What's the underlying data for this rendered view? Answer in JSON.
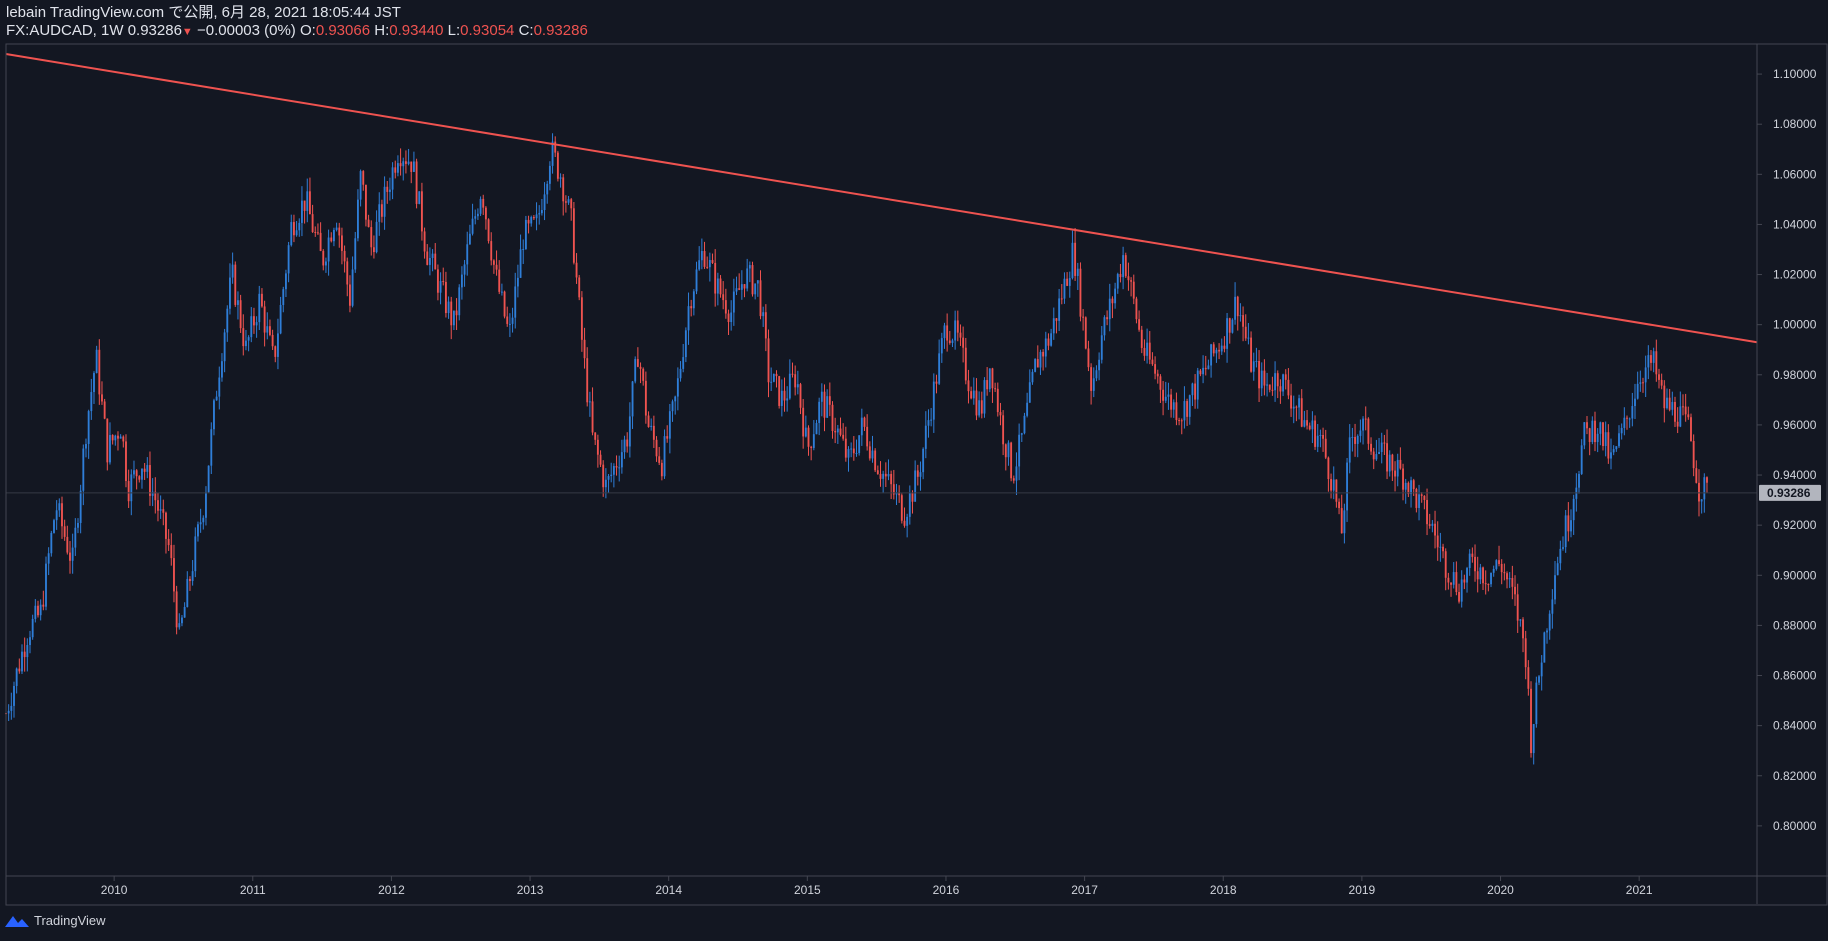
{
  "header": {
    "publish_line": "lebain TradingView.com で公開, 6月 28, 2021 18:05:44 JST",
    "symbol": "FX:AUDCAD, 1W",
    "last_price": "0.93286",
    "change_arrow": "▼",
    "change": "−0.00003 (0%)",
    "o_label": "O:",
    "o_value": "0.93066",
    "h_label": "H:",
    "h_value": "0.93440",
    "l_label": "L:",
    "l_value": "0.93054",
    "c_label": "C:",
    "c_value": "0.93286"
  },
  "footer": {
    "brand": "TradingView",
    "logo_icon": "tradingview-logo-icon"
  },
  "colors": {
    "background": "#131722",
    "up": "#2f7ed8",
    "down": "#ef5350",
    "trendline": "#ef5350",
    "axis": "#434651",
    "text": "#d1d4dc",
    "price_label_bg": "#b2b5be"
  },
  "chart_data": {
    "type": "candlestick",
    "symbol": "FX:AUDCAD",
    "interval": "1W",
    "y_ticks": [
      "0.80000",
      "0.82000",
      "0.84000",
      "0.86000",
      "0.88000",
      "0.90000",
      "0.92000",
      "0.94000",
      "0.96000",
      "0.98000",
      "1.00000",
      "1.02000",
      "1.04000",
      "1.06000",
      "1.08000",
      "1.10000"
    ],
    "ylim": [
      0.78,
      1.112
    ],
    "x_ticks": [
      "2010",
      "2011",
      "2012",
      "2013",
      "2014",
      "2015",
      "2016",
      "2017",
      "2018",
      "2019",
      "2020",
      "2021"
    ],
    "xlim": [
      2009.22,
      2021.85
    ],
    "last_price": 0.93286,
    "last_price_label": "0.93286",
    "trendline": [
      {
        "t": 2009.22,
        "p": 1.108
      },
      {
        "t": 2021.85,
        "p": 0.993
      }
    ],
    "price_path": [
      [
        2009.22,
        0.845
      ],
      [
        2009.38,
        0.878
      ],
      [
        2009.47,
        0.885
      ],
      [
        2009.58,
        0.928
      ],
      [
        2009.7,
        0.905
      ],
      [
        2009.8,
        0.96
      ],
      [
        2009.87,
        0.987
      ],
      [
        2009.95,
        0.95
      ],
      [
        2010.05,
        0.96
      ],
      [
        2010.1,
        0.935
      ],
      [
        2010.2,
        0.945
      ],
      [
        2010.3,
        0.93
      ],
      [
        2010.4,
        0.91
      ],
      [
        2010.47,
        0.875
      ],
      [
        2010.55,
        0.9
      ],
      [
        2010.65,
        0.93
      ],
      [
        2010.75,
        0.98
      ],
      [
        2010.85,
        1.02
      ],
      [
        2010.95,
        0.99
      ],
      [
        2011.05,
        1.01
      ],
      [
        2011.15,
        0.985
      ],
      [
        2011.28,
        1.04
      ],
      [
        2011.38,
        1.05
      ],
      [
        2011.5,
        1.025
      ],
      [
        2011.6,
        1.045
      ],
      [
        2011.7,
        1.01
      ],
      [
        2011.78,
        1.06
      ],
      [
        2011.85,
        1.03
      ],
      [
        2011.95,
        1.05
      ],
      [
        2012.05,
        1.07
      ],
      [
        2012.15,
        1.065
      ],
      [
        2012.25,
        1.03
      ],
      [
        2012.35,
        1.015
      ],
      [
        2012.45,
        1.0
      ],
      [
        2012.55,
        1.03
      ],
      [
        2012.65,
        1.055
      ],
      [
        2012.75,
        1.02
      ],
      [
        2012.85,
        0.995
      ],
      [
        2012.95,
        1.035
      ],
      [
        2013.05,
        1.04
      ],
      [
        2013.15,
        1.07
      ],
      [
        2013.22,
        1.06
      ],
      [
        2013.3,
        1.04
      ],
      [
        2013.38,
        0.99
      ],
      [
        2013.45,
        0.955
      ],
      [
        2013.55,
        0.935
      ],
      [
        2013.62,
        0.945
      ],
      [
        2013.7,
        0.955
      ],
      [
        2013.78,
        0.99
      ],
      [
        2013.85,
        0.96
      ],
      [
        2013.95,
        0.945
      ],
      [
        2014.05,
        0.97
      ],
      [
        2014.15,
        1.01
      ],
      [
        2014.25,
        1.03
      ],
      [
        2014.35,
        1.015
      ],
      [
        2014.45,
        1.005
      ],
      [
        2014.55,
        1.02
      ],
      [
        2014.65,
        1.015
      ],
      [
        2014.72,
        0.98
      ],
      [
        2014.82,
        0.97
      ],
      [
        2014.92,
        0.98
      ],
      [
        2015.0,
        0.95
      ],
      [
        2015.1,
        0.97
      ],
      [
        2015.2,
        0.96
      ],
      [
        2015.3,
        0.945
      ],
      [
        2015.4,
        0.96
      ],
      [
        2015.5,
        0.945
      ],
      [
        2015.6,
        0.935
      ],
      [
        2015.7,
        0.925
      ],
      [
        2015.8,
        0.94
      ],
      [
        2015.9,
        0.97
      ],
      [
        2016.0,
        1.0
      ],
      [
        2016.08,
        0.995
      ],
      [
        2016.15,
        0.98
      ],
      [
        2016.25,
        0.965
      ],
      [
        2016.32,
        0.985
      ],
      [
        2016.4,
        0.96
      ],
      [
        2016.48,
        0.94
      ],
      [
        2016.55,
        0.955
      ],
      [
        2016.65,
        0.985
      ],
      [
        2016.75,
        0.995
      ],
      [
        2016.85,
        1.015
      ],
      [
        2016.92,
        1.03
      ],
      [
        2016.98,
        1.005
      ],
      [
        2017.05,
        0.975
      ],
      [
        2017.12,
        0.995
      ],
      [
        2017.2,
        1.01
      ],
      [
        2017.28,
        1.028
      ],
      [
        2017.35,
        1.01
      ],
      [
        2017.42,
        0.99
      ],
      [
        2017.52,
        0.98
      ],
      [
        2017.6,
        0.97
      ],
      [
        2017.7,
        0.965
      ],
      [
        2017.8,
        0.975
      ],
      [
        2017.9,
        0.985
      ],
      [
        2018.0,
        0.995
      ],
      [
        2018.1,
        1.01
      ],
      [
        2018.2,
        0.985
      ],
      [
        2018.3,
        0.975
      ],
      [
        2018.4,
        0.98
      ],
      [
        2018.5,
        0.97
      ],
      [
        2018.6,
        0.96
      ],
      [
        2018.7,
        0.955
      ],
      [
        2018.8,
        0.935
      ],
      [
        2018.85,
        0.915
      ],
      [
        2018.92,
        0.955
      ],
      [
        2019.0,
        0.96
      ],
      [
        2019.1,
        0.95
      ],
      [
        2019.2,
        0.945
      ],
      [
        2019.3,
        0.94
      ],
      [
        2019.4,
        0.93
      ],
      [
        2019.5,
        0.92
      ],
      [
        2019.6,
        0.905
      ],
      [
        2019.7,
        0.895
      ],
      [
        2019.8,
        0.905
      ],
      [
        2019.9,
        0.9
      ],
      [
        2020.0,
        0.905
      ],
      [
        2020.1,
        0.89
      ],
      [
        2020.18,
        0.87
      ],
      [
        2020.22,
        0.835
      ],
      [
        2020.3,
        0.87
      ],
      [
        2020.4,
        0.905
      ],
      [
        2020.5,
        0.925
      ],
      [
        2020.6,
        0.955
      ],
      [
        2020.7,
        0.96
      ],
      [
        2020.8,
        0.945
      ],
      [
        2020.9,
        0.96
      ],
      [
        2021.0,
        0.98
      ],
      [
        2021.1,
        0.985
      ],
      [
        2021.18,
        0.968
      ],
      [
        2021.28,
        0.965
      ],
      [
        2021.36,
        0.958
      ],
      [
        2021.43,
        0.935
      ],
      [
        2021.5,
        0.933
      ]
    ]
  }
}
